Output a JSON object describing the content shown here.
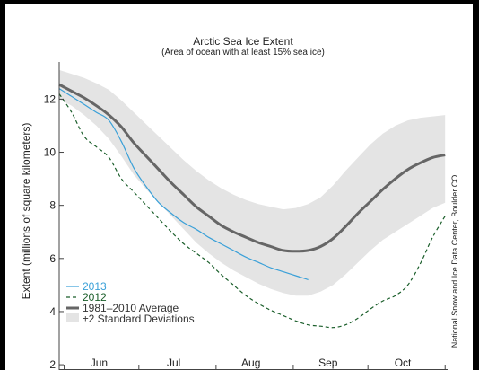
{
  "chart_data": {
    "type": "line",
    "title": "Arctic Sea Ice Extent",
    "subtitle": "(Area of ocean with at least 15% sea ice)",
    "xlabel": "",
    "ylabel": "Extent (millions of square kilometers)",
    "credit": "National Snow and Ice Data Center, Boulder CO",
    "x_unit": "day of year",
    "xlim": [
      150,
      306
    ],
    "ylim": [
      1.8,
      13.4
    ],
    "y_ticks": [
      2,
      4,
      6,
      8,
      10,
      12
    ],
    "x_tick_labels": [
      {
        "label": "Jun",
        "x": 166
      },
      {
        "label": "Jul",
        "x": 196
      },
      {
        "label": "Aug",
        "x": 227
      },
      {
        "label": "Sep",
        "x": 258
      },
      {
        "label": "Oct",
        "x": 288
      }
    ],
    "x_tick_marks": [
      152,
      182,
      213,
      244,
      274,
      305
    ],
    "grid": false,
    "legend_position": "bottom-left",
    "colors": {
      "y2013": "#3aa0d8",
      "y2012": "#1a5e2a",
      "average": "#666666",
      "band": "#e4e4e4"
    },
    "series": [
      {
        "name": "2013",
        "style": "solid",
        "x": [
          150,
          155,
          160,
          165,
          170,
          175,
          180,
          185,
          190,
          195,
          200,
          205,
          210,
          215,
          220,
          225,
          230,
          235,
          240,
          245,
          250
        ],
        "values": [
          12.4,
          12.1,
          11.8,
          11.5,
          11.2,
          10.4,
          9.4,
          8.7,
          8.1,
          7.7,
          7.35,
          7.1,
          6.8,
          6.55,
          6.3,
          6.05,
          5.85,
          5.65,
          5.5,
          5.35,
          5.2
        ]
      },
      {
        "name": "2012",
        "style": "dashed",
        "x": [
          150,
          155,
          160,
          165,
          170,
          175,
          180,
          185,
          190,
          195,
          200,
          205,
          210,
          215,
          220,
          225,
          230,
          235,
          240,
          245,
          250,
          255,
          260,
          265,
          270,
          275,
          280,
          285,
          290,
          295,
          300,
          305
        ],
        "values": [
          12.2,
          11.5,
          10.6,
          10.2,
          9.8,
          9.0,
          8.5,
          8.0,
          7.5,
          7.0,
          6.55,
          6.2,
          5.85,
          5.4,
          5.0,
          4.6,
          4.3,
          4.05,
          3.85,
          3.65,
          3.5,
          3.45,
          3.4,
          3.5,
          3.75,
          4.1,
          4.4,
          4.6,
          5.0,
          5.8,
          6.8,
          7.6
        ]
      },
      {
        "name": "1981–2010 Average",
        "style": "thick",
        "x": [
          150,
          155,
          160,
          165,
          170,
          175,
          180,
          185,
          190,
          195,
          200,
          205,
          210,
          215,
          220,
          225,
          230,
          235,
          240,
          245,
          250,
          255,
          260,
          265,
          270,
          275,
          280,
          285,
          290,
          295,
          300,
          305
        ],
        "values": [
          12.55,
          12.3,
          12.05,
          11.75,
          11.4,
          10.95,
          10.35,
          9.85,
          9.35,
          8.85,
          8.4,
          7.95,
          7.6,
          7.25,
          7.0,
          6.8,
          6.6,
          6.45,
          6.3,
          6.27,
          6.3,
          6.45,
          6.75,
          7.2,
          7.7,
          8.15,
          8.6,
          9.0,
          9.35,
          9.6,
          9.8,
          9.9
        ]
      }
    ],
    "band": {
      "name": "±2 Standard Deviations",
      "x": [
        150,
        155,
        160,
        165,
        170,
        175,
        180,
        185,
        190,
        195,
        200,
        205,
        210,
        215,
        220,
        225,
        230,
        235,
        240,
        245,
        250,
        255,
        260,
        265,
        270,
        275,
        280,
        285,
        290,
        295,
        300,
        305
      ],
      "upper": [
        13.1,
        12.95,
        12.8,
        12.6,
        12.35,
        11.95,
        11.5,
        11.05,
        10.6,
        10.15,
        9.7,
        9.3,
        8.95,
        8.65,
        8.4,
        8.2,
        8.05,
        7.95,
        7.85,
        7.9,
        8.05,
        8.3,
        8.75,
        9.3,
        9.8,
        10.3,
        10.7,
        11.0,
        11.2,
        11.3,
        11.35,
        11.4
      ],
      "lower": [
        12.0,
        11.75,
        11.4,
        11.0,
        10.5,
        9.85,
        9.15,
        8.6,
        8.1,
        7.6,
        7.1,
        6.6,
        6.2,
        5.85,
        5.55,
        5.3,
        5.05,
        4.85,
        4.7,
        4.6,
        4.6,
        4.75,
        5.0,
        5.4,
        5.85,
        6.3,
        6.7,
        7.0,
        7.3,
        7.6,
        7.9,
        8.1
      ]
    }
  }
}
